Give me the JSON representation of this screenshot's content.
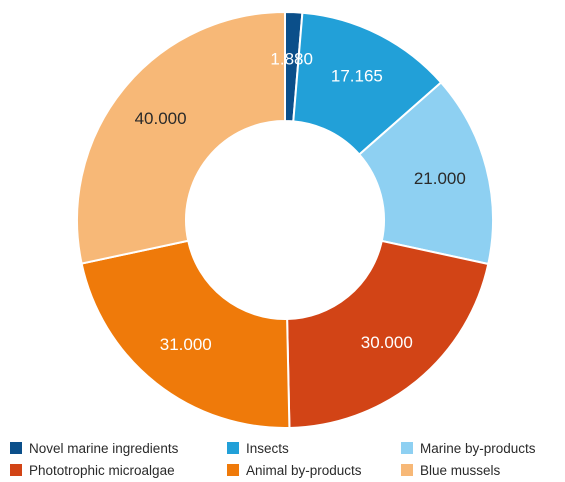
{
  "chart_data": {
    "type": "pie",
    "variant": "donut",
    "categories": [
      "Novel marine ingredients",
      "Insects",
      "Marine by-products",
      "Phototrophic microalgae",
      "Animal by-products",
      "Blue mussels"
    ],
    "values": [
      1880,
      17165,
      21000,
      30000,
      31000,
      40000
    ],
    "value_labels": [
      "1.880",
      "17.165",
      "21.000",
      "30.000",
      "31.000",
      "40.000"
    ],
    "colors": [
      "#0b4f8a",
      "#22a0d8",
      "#8ed0f2",
      "#d24416",
      "#ef7a0a",
      "#f7b877"
    ],
    "label_colors": [
      "#ffffff",
      "#ffffff",
      "#2a2a2a",
      "#ffffff",
      "#ffffff",
      "#2a2a2a"
    ],
    "legend": {
      "position": "bottom",
      "items": [
        {
          "label": "Novel marine ingredients",
          "color": "#0b4f8a"
        },
        {
          "label": "Insects",
          "color": "#22a0d8"
        },
        {
          "label": "Marine by-products",
          "color": "#8ed0f2"
        },
        {
          "label": "Phototrophic microalgae",
          "color": "#d24416"
        },
        {
          "label": "Animal by-products",
          "color": "#ef7a0a"
        },
        {
          "label": "Blue mussels",
          "color": "#f7b877"
        }
      ]
    }
  }
}
